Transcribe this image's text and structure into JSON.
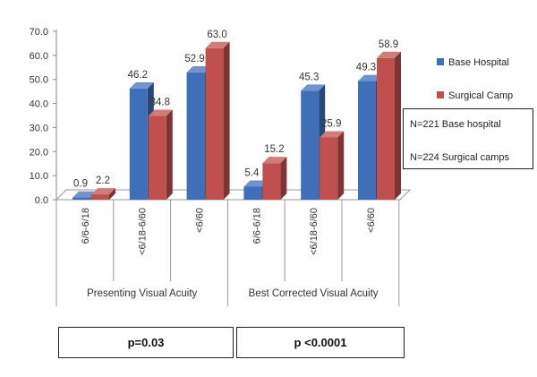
{
  "chart_data": {
    "type": "bar",
    "style": "3d-clustered",
    "subcategories": [
      "6/6-6/18",
      "<6/18-6/60",
      "<6/60",
      "6/6-6/18",
      "<6/18-6/60",
      "<6/60"
    ],
    "groups": [
      {
        "label": "Presenting Visual Acuity",
        "span": [
          0,
          2
        ]
      },
      {
        "label": "Best Corrected Visual Acuity",
        "span": [
          3,
          5
        ]
      }
    ],
    "series": [
      {
        "name": "Base Hospital",
        "color": "#3f6fb8",
        "values": [
          0.9,
          46.2,
          52.9,
          5.4,
          45.3,
          49.3
        ],
        "labels": [
          "0.9",
          "46.2",
          "52.9",
          "5.4",
          "45.3",
          "49.3"
        ]
      },
      {
        "name": "Surgical Camp",
        "color": "#c0504d",
        "values": [
          2.2,
          34.8,
          63.0,
          15.2,
          25.9,
          58.9
        ],
        "labels": [
          "2.2",
          "34.8",
          "63.0",
          "15.2",
          "25.9",
          "58.9"
        ]
      }
    ],
    "yticks": [
      "0.0",
      "10.0",
      "20.0",
      "30.0",
      "40.0",
      "50.0",
      "60.0",
      "70.0"
    ],
    "ylim": [
      0,
      70
    ],
    "grid": false,
    "legend_position": "right"
  },
  "notes": {
    "line1": "N=221 Base hospital",
    "line2": "N=224 Surgical camps"
  },
  "pvalues": [
    {
      "text": "p=0.03"
    },
    {
      "text": "p <0.0001"
    }
  ]
}
